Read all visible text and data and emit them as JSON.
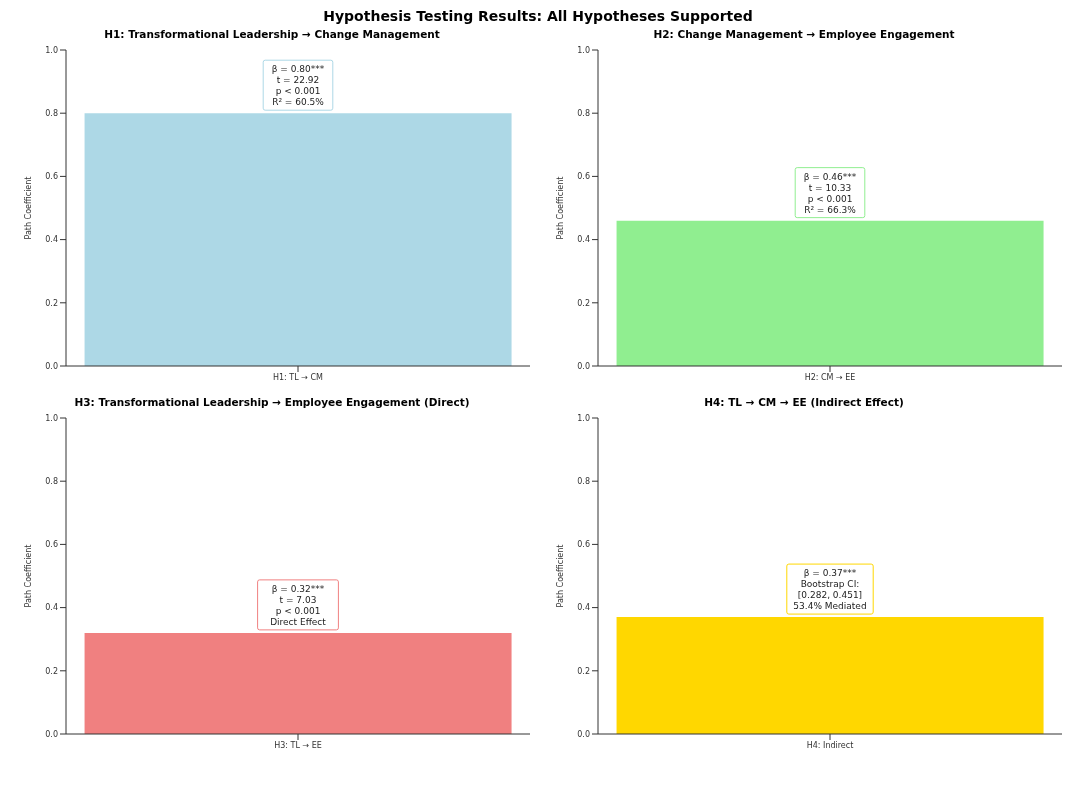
{
  "chart_data": [
    {
      "type": "bar",
      "title": "H1: Transformational Leadership → Change Management",
      "ylabel": "Path Coefficient",
      "categories": [
        "H1: TL → CM"
      ],
      "values": [
        0.8
      ],
      "color": "#add8e6",
      "ylim": [
        0,
        1
      ],
      "yticks": [
        {
          "value": 0,
          "label": "0.0"
        },
        {
          "value": 0.2,
          "label": "0.2"
        },
        {
          "value": 0.4,
          "label": "0.4"
        },
        {
          "value": 0.6,
          "label": "0.6"
        },
        {
          "value": 0.8,
          "label": "0.8"
        },
        {
          "value": 1,
          "label": "1.0"
        }
      ],
      "grid": false,
      "legend": false,
      "annotations": [
        "Hypothesis Testing Results: All Hypotheses Supported",
        {
          "text": "β = 0.80***\nt = 22.92\np < 0.001\nR² = 60.5%",
          "x": "H1: TL → CM",
          "y": 0.8
        }
      ]
    },
    {
      "type": "bar",
      "title": "H2: Change Management → Employee Engagement",
      "ylabel": "Path Coefficient",
      "categories": [
        "H2: CM → EE"
      ],
      "values": [
        0.46
      ],
      "color": "#90ee90",
      "ylim": [
        0,
        1
      ],
      "yticks": [
        {
          "value": 0,
          "label": "0.0"
        },
        {
          "value": 0.2,
          "label": "0.2"
        },
        {
          "value": 0.4,
          "label": "0.4"
        },
        {
          "value": 0.6,
          "label": "0.6"
        },
        {
          "value": 0.8,
          "label": "0.8"
        },
        {
          "value": 1,
          "label": "1.0"
        }
      ],
      "grid": false,
      "legend": false,
      "annotations": [
        {
          "text": "β = 0.46***\nt = 10.33\np < 0.001\nR² = 66.3%",
          "x": "H2: CM → EE",
          "y": 0.46
        }
      ]
    },
    {
      "type": "bar",
      "title": "H3: Transformational Leadership → Employee Engagement (Direct)",
      "ylabel": "Path Coefficient",
      "categories": [
        "H3: TL → EE"
      ],
      "values": [
        0.32
      ],
      "color": "#f08080",
      "ylim": [
        0,
        1
      ],
      "yticks": [
        {
          "value": 0,
          "label": "0.0"
        },
        {
          "value": 0.2,
          "label": "0.2"
        },
        {
          "value": 0.4,
          "label": "0.4"
        },
        {
          "value": 0.6,
          "label": "0.6"
        },
        {
          "value": 0.8,
          "label": "0.8"
        },
        {
          "value": 1,
          "label": "1.0"
        }
      ],
      "grid": false,
      "legend": false,
      "annotations": [
        {
          "text": "β = 0.32***\nt = 7.03\np < 0.001\nDirect Effect",
          "x": "H3: TL → EE",
          "y": 0.32
        }
      ]
    },
    {
      "type": "bar",
      "title": "H4: TL → CM → EE (Indirect Effect)",
      "ylabel": "Path Coefficient",
      "categories": [
        "H4: Indirect"
      ],
      "values": [
        0.37
      ],
      "color": "#ffd700",
      "ylim": [
        0,
        1
      ],
      "yticks": [
        {
          "value": 0,
          "label": "0.0"
        },
        {
          "value": 0.2,
          "label": "0.2"
        },
        {
          "value": 0.4,
          "label": "0.4"
        },
        {
          "value": 0.6,
          "label": "0.6"
        },
        {
          "value": 0.8,
          "label": "0.8"
        },
        {
          "value": 1,
          "label": "1.0"
        }
      ],
      "grid": false,
      "legend": false,
      "annotations": [
        {
          "text": "β = 0.37***\nBootstrap CI:\n[0.282, 0.451]\n53.4% Mediated",
          "x": "H4: Indirect",
          "y": 0.37
        }
      ]
    }
  ]
}
